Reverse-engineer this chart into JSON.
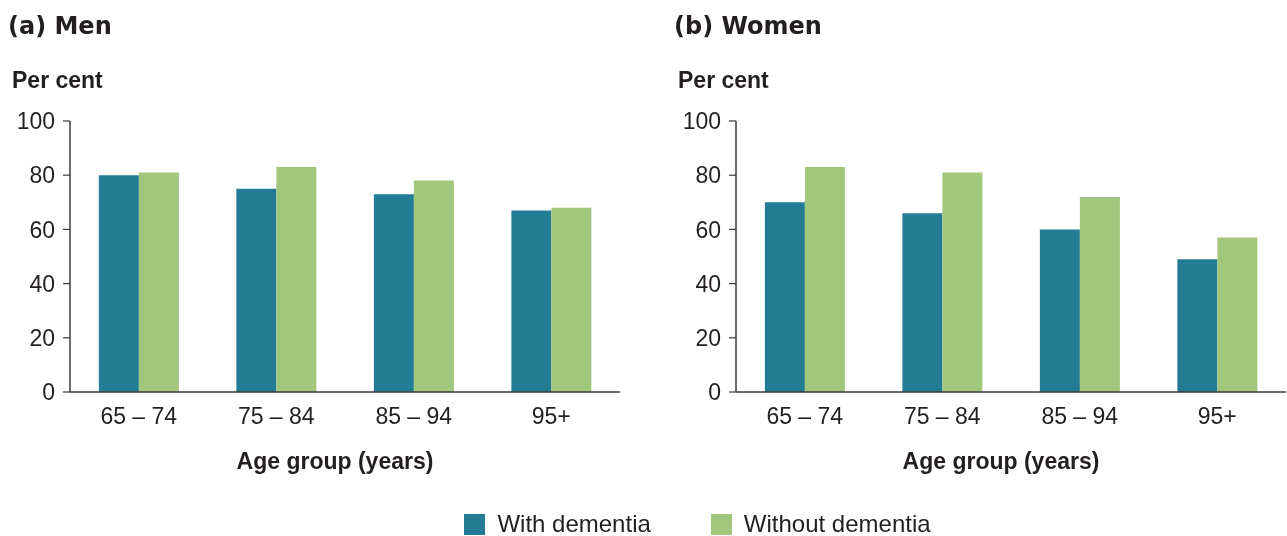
{
  "chart_data": [
    {
      "type": "bar",
      "title": "(a) Men",
      "ylabel": "Per cent",
      "xlabel": "Age group (years)",
      "categories": [
        "65 – 74",
        "75 – 84",
        "85 – 94",
        "95+"
      ],
      "series": [
        {
          "name": "With dementia",
          "color": "#247c94",
          "values": [
            80,
            75,
            73,
            67
          ]
        },
        {
          "name": "Without dementia",
          "color": "#a0c77b",
          "values": [
            81,
            83,
            78,
            68
          ]
        }
      ],
      "ylim": [
        0,
        100
      ],
      "yticks": [
        0,
        20,
        40,
        60,
        80,
        100
      ],
      "legend": "bottom"
    },
    {
      "type": "bar",
      "title": "(b) Women",
      "ylabel": "Per cent",
      "xlabel": "Age group (years)",
      "categories": [
        "65 – 74",
        "75 – 84",
        "85 – 94",
        "95+"
      ],
      "series": [
        {
          "color": "#247c94",
          "values": [
            70,
            66,
            60,
            49
          ]
        },
        {
          "color": "#a0c77b",
          "values": [
            83,
            81,
            72,
            57
          ]
        }
      ],
      "ylim": [
        0,
        100
      ],
      "yticks": [
        0,
        20,
        40,
        60,
        80,
        100
      ]
    }
  ]
}
